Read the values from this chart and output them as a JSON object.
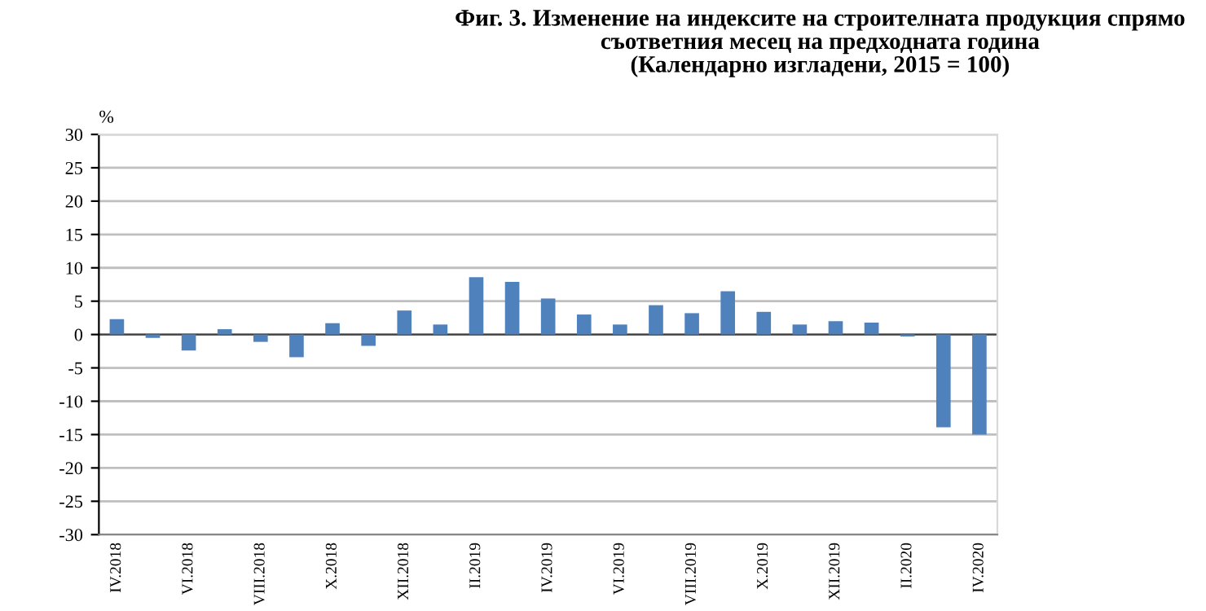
{
  "chart_data": {
    "type": "bar",
    "title": "Фиг. 3. Изменение на индексите на строителната продукция спрямо\nсъответния месец на предходната година\n(Календарно изгладени, 2015 = 100)",
    "ylabel": "%",
    "categories": [
      "IV.2018",
      null,
      "VI.2018",
      null,
      "VIII.2018",
      null,
      "X.2018",
      null,
      "XII.2018",
      null,
      "II.2019",
      null,
      "IV.2019",
      null,
      "VI.2019",
      null,
      "VIII.2019",
      null,
      "X.2019",
      null,
      "XII.2019",
      null,
      "II.2020",
      null,
      "IV.2020"
    ],
    "values": [
      2.3,
      -0.5,
      -2.4,
      0.8,
      -1.1,
      -3.4,
      1.7,
      -1.7,
      3.6,
      1.5,
      8.6,
      7.9,
      5.4,
      3.0,
      1.5,
      4.4,
      3.2,
      6.5,
      3.4,
      1.5,
      2.0,
      1.8,
      -0.3,
      -13.9,
      -15.0
    ],
    "color": "#4f81bd",
    "ylim": [
      -30,
      30
    ],
    "yticks": [
      -30,
      -25,
      -20,
      -15,
      -10,
      -5,
      0,
      5,
      10,
      15,
      20,
      25,
      30
    ],
    "grid": "y",
    "legend": false
  }
}
